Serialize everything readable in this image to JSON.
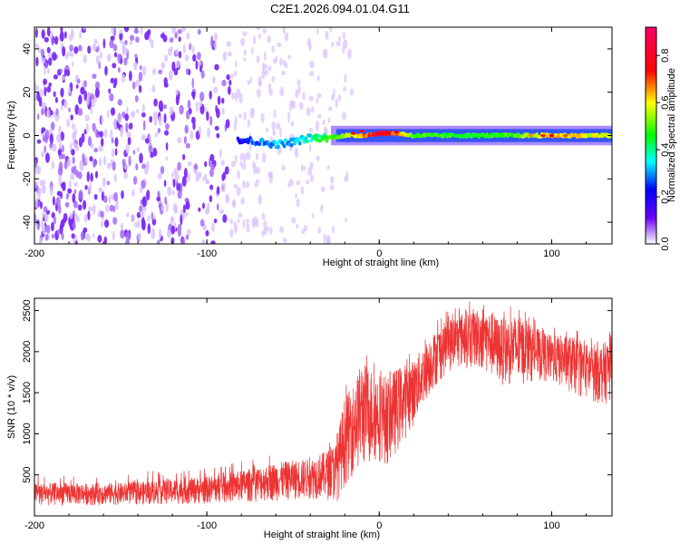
{
  "title": "C2E1.2026.094.01.04.G11",
  "chart_data": [
    {
      "type": "heatmap",
      "xlabel": "Height of straight line (km)",
      "ylabel": "Frequency (Hz)",
      "xlim": [
        -200,
        135
      ],
      "ylim": [
        -50,
        50
      ],
      "xticks": [
        "-200",
        "-100",
        "0",
        "100"
      ],
      "yticks": [
        "-40",
        "-20",
        "0",
        "20",
        "40"
      ],
      "colorbar": {
        "label": "Normalized spectral amplitude",
        "range": [
          0,
          0.92
        ],
        "ticks": [
          "0.0",
          "0.2",
          "0.4",
          "0.6",
          "0.8"
        ]
      },
      "signal_track": {
        "x": [
          -80,
          -70,
          -60,
          -50,
          -40,
          -30,
          -20,
          -10,
          0,
          10,
          20,
          40,
          60,
          80,
          100,
          120,
          135
        ],
        "freq": [
          -2,
          -3,
          -4,
          -3,
          -1,
          -1,
          0,
          0,
          1,
          1,
          0,
          0,
          0,
          0,
          0,
          0,
          0
        ],
        "amplitude": [
          0.25,
          0.3,
          0.35,
          0.35,
          0.4,
          0.5,
          0.6,
          0.7,
          0.85,
          0.75,
          0.55,
          0.5,
          0.5,
          0.55,
          0.7,
          0.65,
          0.6
        ]
      },
      "noise_extent_x": [
        -200,
        -25
      ]
    },
    {
      "type": "line",
      "xlabel": "Height of straight line (km)",
      "ylabel": "SNR (10 * v/v)",
      "xlim": [
        -200,
        135
      ],
      "ylim": [
        0,
        2650
      ],
      "xticks": [
        "-200",
        "-100",
        "0",
        "100"
      ],
      "yticks": [
        "500",
        "1000",
        "1500",
        "2000",
        "2500"
      ],
      "color": "#ee3333",
      "envelope": {
        "x": [
          -200,
          -150,
          -100,
          -80,
          -60,
          -40,
          -30,
          -25,
          -20,
          -15,
          -10,
          -5,
          0,
          5,
          10,
          20,
          30,
          40,
          50,
          60,
          70,
          80,
          90,
          100,
          110,
          120,
          130,
          135
        ],
        "low": [
          120,
          130,
          140,
          160,
          180,
          200,
          200,
          150,
          350,
          500,
          550,
          600,
          650,
          600,
          750,
          1100,
          1500,
          1750,
          1800,
          1750,
          1600,
          1550,
          1650,
          1600,
          1500,
          1400,
          1350,
          1400
        ],
        "high": [
          400,
          400,
          480,
          550,
          650,
          700,
          800,
          900,
          1450,
          1600,
          1900,
          1800,
          1750,
          1700,
          1800,
          1900,
          2200,
          2400,
          2500,
          2550,
          2400,
          2450,
          2300,
          2200,
          2200,
          2100,
          2100,
          2200
        ]
      }
    }
  ]
}
